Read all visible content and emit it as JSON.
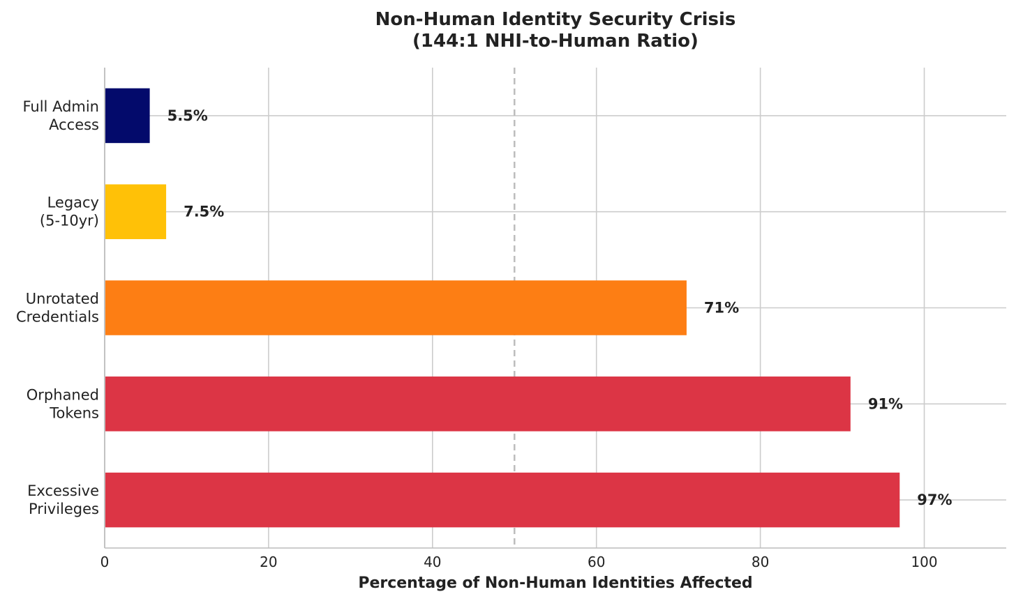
{
  "chart_data": {
    "type": "bar",
    "orientation": "horizontal",
    "title": "Non-Human Identity Security Crisis",
    "subtitle": "(144:1 NHI-to-Human Ratio)",
    "xlabel": "Percentage of Non-Human Identities Affected",
    "ylabel": "",
    "xlim": [
      0,
      110
    ],
    "xticks": [
      0,
      20,
      40,
      60,
      80,
      100
    ],
    "grid": true,
    "legend": "none",
    "reference_line": {
      "x": 50,
      "style": "dashed",
      "color": "#bdbdbd"
    },
    "categories": [
      {
        "lines": [
          "Full Admin",
          "Access"
        ],
        "value": 5.5,
        "label": "5.5%",
        "color": "#030a6b"
      },
      {
        "lines": [
          "Legacy",
          "(5-10yr)"
        ],
        "value": 7.5,
        "label": "7.5%",
        "color": "#ffc107"
      },
      {
        "lines": [
          "Unrotated",
          "Credentials"
        ],
        "value": 71,
        "label": "71%",
        "color": "#fd7e14"
      },
      {
        "lines": [
          "Orphaned",
          "Tokens"
        ],
        "value": 91,
        "label": "91%",
        "color": "#dc3545"
      },
      {
        "lines": [
          "Excessive",
          "Privileges"
        ],
        "value": 97,
        "label": "97%",
        "color": "#dc3545"
      }
    ]
  }
}
